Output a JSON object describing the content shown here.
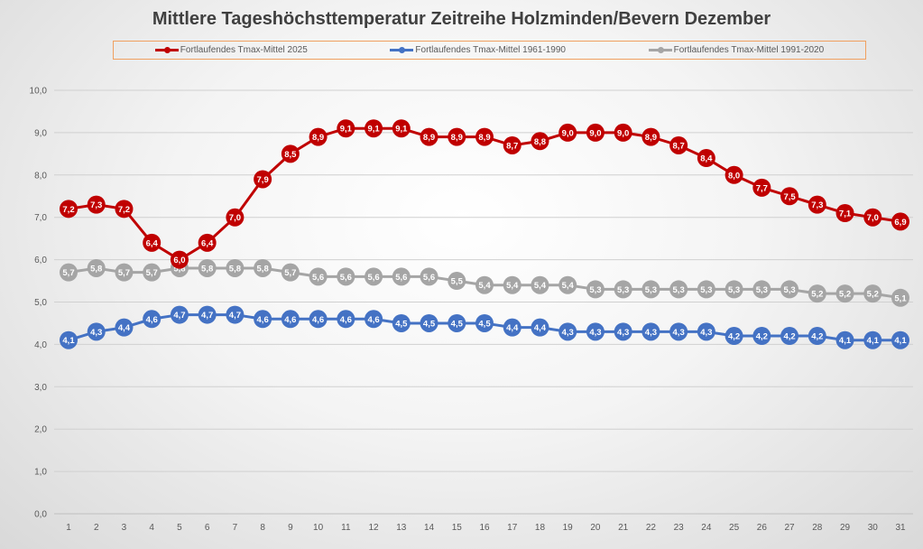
{
  "chart_data": {
    "type": "line",
    "title": "Mittlere Tageshöchsttemperatur Zeitreihe Holzminden/Bevern Dezember",
    "xlabel": "",
    "ylabel": "",
    "ylim": [
      0,
      10
    ],
    "yticks": [
      "0,0",
      "1,0",
      "2,0",
      "3,0",
      "4,0",
      "5,0",
      "6,0",
      "7,0",
      "8,0",
      "9,0",
      "10,0"
    ],
    "x": [
      1,
      2,
      3,
      4,
      5,
      6,
      7,
      8,
      9,
      10,
      11,
      12,
      13,
      14,
      15,
      16,
      17,
      18,
      19,
      20,
      21,
      22,
      23,
      24,
      25,
      26,
      27,
      28,
      29,
      30,
      31
    ],
    "grid": true,
    "legend_placement": "top",
    "series": [
      {
        "name": "Fortlaufendes Tmax-Mittel 2025",
        "color": "#c00000",
        "values": [
          7.2,
          7.3,
          7.2,
          6.4,
          6.0,
          6.4,
          7.0,
          7.9,
          8.5,
          8.9,
          9.1,
          9.1,
          9.1,
          8.9,
          8.9,
          8.9,
          8.7,
          8.8,
          9.0,
          9.0,
          9.0,
          8.9,
          8.7,
          8.4,
          8.0,
          7.7,
          7.5,
          7.3,
          7.1,
          7.0,
          6.9
        ]
      },
      {
        "name": "Fortlaufendes Tmax-Mittel 1961-1990",
        "color": "#4472c4",
        "values": [
          4.1,
          4.3,
          4.4,
          4.6,
          4.7,
          4.7,
          4.7,
          4.6,
          4.6,
          4.6,
          4.6,
          4.6,
          4.5,
          4.5,
          4.5,
          4.5,
          4.4,
          4.4,
          4.3,
          4.3,
          4.3,
          4.3,
          4.3,
          4.3,
          4.2,
          4.2,
          4.2,
          4.2,
          4.1,
          4.1,
          4.1
        ]
      },
      {
        "name": "Fortlaufendes Tmax-Mittel 1991-2020",
        "color": "#a5a5a5",
        "values": [
          5.7,
          5.8,
          5.7,
          5.7,
          5.8,
          5.8,
          5.8,
          5.8,
          5.7,
          5.6,
          5.6,
          5.6,
          5.6,
          5.6,
          5.5,
          5.4,
          5.4,
          5.4,
          5.4,
          5.3,
          5.3,
          5.3,
          5.3,
          5.3,
          5.3,
          5.3,
          5.3,
          5.2,
          5.2,
          5.2,
          5.1
        ]
      }
    ]
  }
}
